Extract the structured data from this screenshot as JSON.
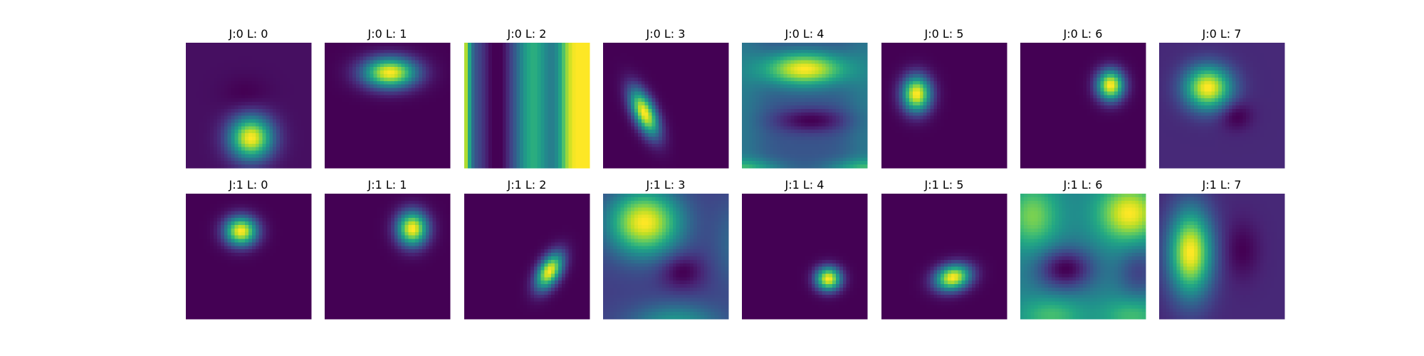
{
  "chart_data": {
    "type": "heatmap",
    "colormap": "viridis",
    "layout": {
      "rows": 2,
      "cols": 8
    },
    "grid": false,
    "axes_visible": false,
    "panels": [
      {
        "title": "J:0 L: 0",
        "background": 0.05,
        "blobs": [
          {
            "cx": 0.52,
            "cy": 0.76,
            "sx": 0.12,
            "sy": 0.12,
            "rot": 0,
            "amp": 0.95
          },
          {
            "cx": 0.48,
            "cy": 0.42,
            "sx": 0.13,
            "sy": 0.1,
            "rot": 0,
            "amp": -0.05
          }
        ]
      },
      {
        "title": "J:0 L: 1",
        "background": 0.0,
        "blobs": [
          {
            "cx": 0.52,
            "cy": 0.24,
            "sx": 0.15,
            "sy": 0.085,
            "rot": 0,
            "amp": 1.0
          }
        ]
      },
      {
        "title": "J:0 L: 2",
        "background": 0.35,
        "stripes": true
      },
      {
        "title": "J:0 L: 3",
        "background": 0.03,
        "blobs": [
          {
            "cx": 0.33,
            "cy": 0.56,
            "sx": 0.06,
            "sy": 0.14,
            "rot": -25,
            "amp": 1.0
          }
        ]
      },
      {
        "title": "J:0 L: 4",
        "background": 0.25,
        "waves": "horizontal"
      },
      {
        "title": "J:0 L: 5",
        "background": 0.0,
        "blobs": [
          {
            "cx": 0.28,
            "cy": 0.41,
            "sx": 0.08,
            "sy": 0.1,
            "rot": 0,
            "amp": 1.0
          }
        ]
      },
      {
        "title": "J:0 L: 6",
        "background": 0.0,
        "blobs": [
          {
            "cx": 0.72,
            "cy": 0.34,
            "sx": 0.075,
            "sy": 0.085,
            "rot": 0,
            "amp": 1.0
          }
        ]
      },
      {
        "title": "J:0 L: 7",
        "background": 0.14,
        "blobs": [
          {
            "cx": 0.39,
            "cy": 0.36,
            "sx": 0.13,
            "sy": 0.12,
            "rot": 0,
            "amp": 0.9
          },
          {
            "cx": 0.61,
            "cy": 0.58,
            "sx": 0.09,
            "sy": 0.08,
            "rot": 0,
            "amp": -0.15
          }
        ]
      },
      {
        "title": "J:1 L: 0",
        "background": 0.0,
        "blobs": [
          {
            "cx": 0.44,
            "cy": 0.3,
            "sx": 0.09,
            "sy": 0.08,
            "rot": 0,
            "amp": 1.0
          }
        ]
      },
      {
        "title": "J:1 L: 1",
        "background": 0.0,
        "blobs": [
          {
            "cx": 0.7,
            "cy": 0.28,
            "sx": 0.085,
            "sy": 0.095,
            "rot": 0,
            "amp": 1.0
          }
        ]
      },
      {
        "title": "J:1 L: 2",
        "background": 0.0,
        "blobs": [
          {
            "cx": 0.68,
            "cy": 0.62,
            "sx": 0.06,
            "sy": 0.11,
            "rot": 30,
            "amp": 1.0
          }
        ]
      },
      {
        "title": "J:1 L: 3",
        "background": 0.22,
        "blobs": [
          {
            "cx": 0.33,
            "cy": 0.23,
            "sx": 0.2,
            "sy": 0.18,
            "rot": 0,
            "amp": 0.78
          },
          {
            "cx": 0.63,
            "cy": 0.62,
            "sx": 0.12,
            "sy": 0.1,
            "rot": 0,
            "amp": -0.2
          },
          {
            "cx": 0.58,
            "cy": 1.05,
            "sx": 0.25,
            "sy": 0.12,
            "rot": 0,
            "amp": 0.35
          },
          {
            "cx": 1.05,
            "cy": 0.4,
            "sx": 0.12,
            "sy": 0.25,
            "rot": 0,
            "amp": 0.15
          }
        ]
      },
      {
        "title": "J:1 L: 4",
        "background": 0.0,
        "blobs": [
          {
            "cx": 0.69,
            "cy": 0.68,
            "sx": 0.07,
            "sy": 0.065,
            "rot": 0,
            "amp": 1.0
          }
        ]
      },
      {
        "title": "J:1 L: 5",
        "background": 0.0,
        "blobs": [
          {
            "cx": 0.57,
            "cy": 0.67,
            "sx": 0.1,
            "sy": 0.07,
            "rot": -15,
            "amp": 1.0
          }
        ]
      },
      {
        "title": "J:1 L: 6",
        "background": 0.45,
        "blobs": [
          {
            "cx": 0.87,
            "cy": 0.16,
            "sx": 0.17,
            "sy": 0.16,
            "rot": 0,
            "amp": 0.55
          },
          {
            "cx": 0.1,
            "cy": 0.18,
            "sx": 0.14,
            "sy": 0.18,
            "rot": 0,
            "amp": 0.35
          },
          {
            "cx": 0.36,
            "cy": 0.6,
            "sx": 0.16,
            "sy": 0.12,
            "rot": 0,
            "amp": -0.45
          },
          {
            "cx": 0.95,
            "cy": 0.62,
            "sx": 0.12,
            "sy": 0.15,
            "rot": 0,
            "amp": -0.25
          },
          {
            "cx": 0.25,
            "cy": 0.97,
            "sx": 0.18,
            "sy": 0.1,
            "rot": 0,
            "amp": 0.25
          },
          {
            "cx": 0.9,
            "cy": 0.97,
            "sx": 0.18,
            "sy": 0.1,
            "rot": 0,
            "amp": 0.25
          }
        ]
      },
      {
        "title": "J:1 L: 7",
        "background": 0.15,
        "blobs": [
          {
            "cx": 0.25,
            "cy": 0.47,
            "sx": 0.12,
            "sy": 0.24,
            "rot": 0,
            "amp": 0.9
          },
          {
            "cx": 0.66,
            "cy": 0.45,
            "sx": 0.1,
            "sy": 0.16,
            "rot": 0,
            "amp": -0.12
          }
        ]
      }
    ]
  }
}
